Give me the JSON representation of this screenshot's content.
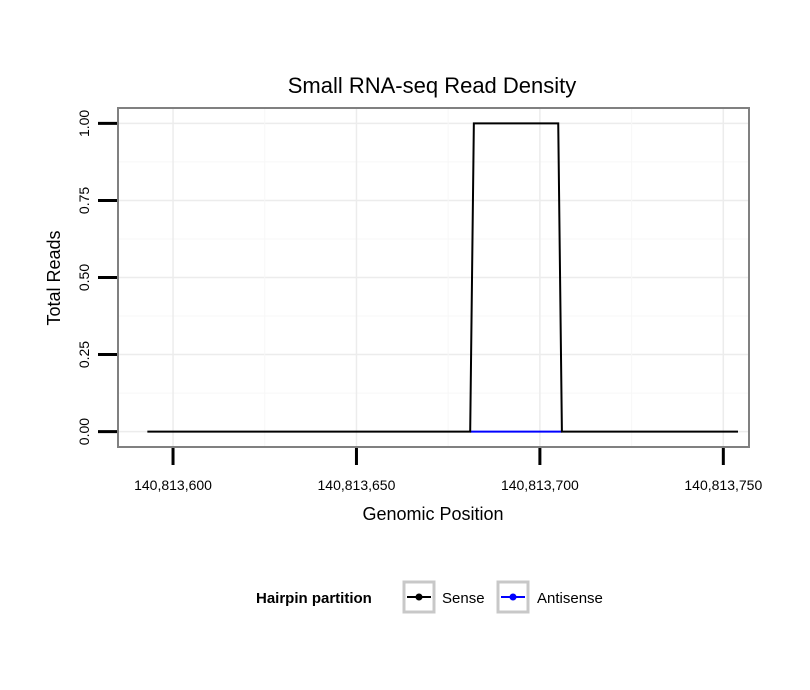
{
  "chart_data": {
    "type": "line",
    "title": "Small RNA-seq Read Density",
    "xlabel": "Genomic Position",
    "ylabel": "Total Reads",
    "xlim": [
      140813585,
      140813757
    ],
    "ylim": [
      -0.05,
      1.05
    ],
    "x_ticks": [
      140813600,
      140813650,
      140813700,
      140813750
    ],
    "x_tick_labels": [
      "140,813,600",
      "140,813,650",
      "140,813,700",
      "140,813,750"
    ],
    "y_ticks": [
      0,
      0.25,
      0.5,
      0.75,
      1
    ],
    "y_tick_labels": [
      "0.00",
      "0.25",
      "0.50",
      "0.75",
      "1.00"
    ],
    "grid": true,
    "series": [
      {
        "name": "Sense",
        "color": "#000000",
        "x": [
          140813593,
          140813681,
          140813682,
          140813705,
          140813706,
          140813754
        ],
        "values": [
          0,
          0,
          1,
          1,
          0,
          0
        ]
      },
      {
        "name": "Antisense",
        "color": "#0000ff",
        "x": [
          140813681,
          140813706
        ],
        "values": [
          0,
          0
        ]
      }
    ],
    "legend": {
      "title": "Hairpin partition",
      "position": "bottom",
      "entries": [
        "Sense",
        "Antisense"
      ]
    }
  }
}
